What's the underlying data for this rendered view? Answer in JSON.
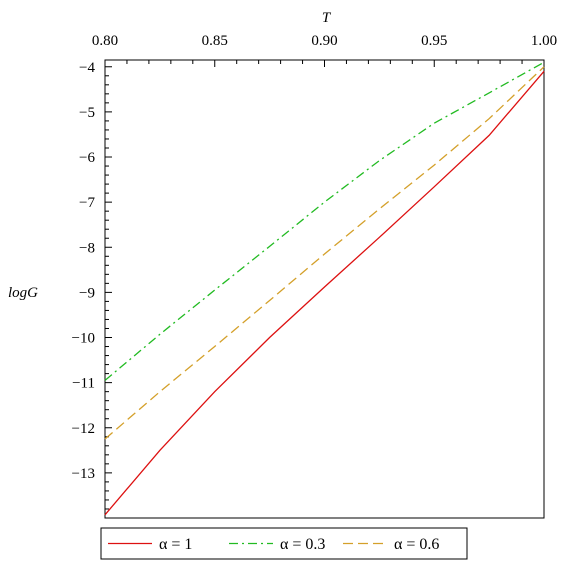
{
  "chart_data": {
    "type": "line",
    "title": "",
    "xlabel": "T",
    "ylabel": "logG",
    "xlim": [
      0.8,
      1.0
    ],
    "ylim": [
      -14,
      -3.85
    ],
    "x_axis_position": "top",
    "grid": false,
    "legend_position": "bottom",
    "x_ticks": [
      0.8,
      0.85,
      0.9,
      0.95,
      1.0
    ],
    "x_tick_labels": [
      "0.80",
      "0.85",
      "0.90",
      "0.95",
      "1.00"
    ],
    "y_ticks": [
      -4,
      -5,
      -6,
      -7,
      -8,
      -9,
      -10,
      -11,
      -12,
      -13
    ],
    "y_tick_labels": [
      "-4",
      "-5",
      "-6",
      "-7",
      "-8",
      "-9",
      "-10",
      "-11",
      "-12",
      "-13"
    ],
    "x": [
      0.8,
      0.825,
      0.85,
      0.875,
      0.9,
      0.925,
      0.95,
      0.975,
      1.0
    ],
    "series": [
      {
        "name": "α = 1",
        "color": "#dd1111",
        "dash": "solid",
        "values": [
          -13.93,
          -12.5,
          -11.2,
          -10.0,
          -8.88,
          -7.78,
          -6.66,
          -5.52,
          -4.1
        ]
      },
      {
        "name": "α = 0.3",
        "color": "#22bb22",
        "dash": "dashdot",
        "values": [
          -10.95,
          -9.93,
          -8.95,
          -7.98,
          -7.0,
          -6.08,
          -5.25,
          -4.58,
          -3.9
        ]
      },
      {
        "name": "α = 0.6",
        "color": "#d4a02a",
        "dash": "dash",
        "values": [
          -12.25,
          -11.2,
          -10.2,
          -9.18,
          -8.15,
          -7.15,
          -6.18,
          -5.15,
          -4.0
        ]
      }
    ]
  }
}
